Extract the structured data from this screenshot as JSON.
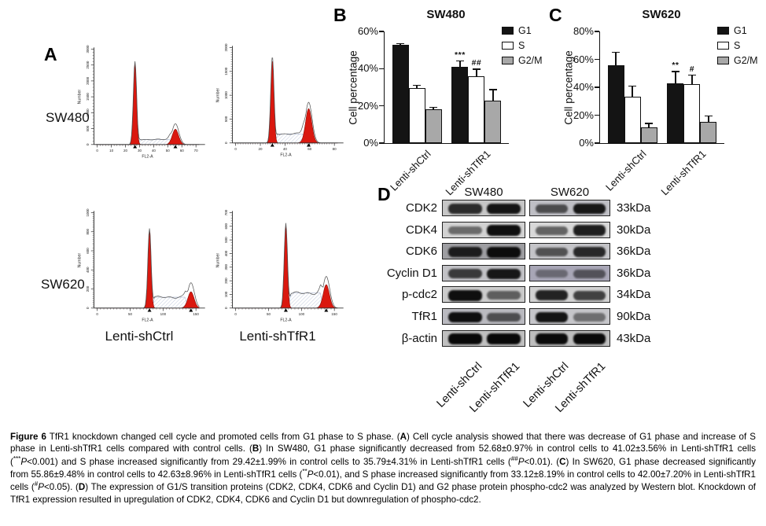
{
  "figure": {
    "background": "#ffffff"
  },
  "panel_a": {
    "label": "A",
    "row_labels": [
      "SW480",
      "SW620"
    ],
    "col_labels": [
      "Lenti-shCtrl",
      "Lenti-shTfR1"
    ],
    "axis": {
      "xlabel": "FL2-A",
      "ylabel": "Number"
    },
    "plot_colors": {
      "peak_fill": "#da180f",
      "peak_stroke": "#7c0a06",
      "hatch": "#93a2c4",
      "outline": "#555555"
    },
    "plots": [
      {
        "row": "SW480",
        "col": "Lenti-shCtrl",
        "yticks": [
          "0",
          "500",
          "1000",
          "1500",
          "2000",
          "2500",
          "3000"
        ],
        "xticks": [
          "0",
          "10",
          "20",
          "30",
          "40",
          "50",
          "60",
          "70"
        ],
        "g1_x": 0.38,
        "g1_h": 0.92,
        "g2_x": 0.77,
        "g2_h": 0.17,
        "g2_outline_h": 0.23,
        "s_h": 0.055
      },
      {
        "row": "SW480",
        "col": "Lenti-shTfR1",
        "yticks": [
          "0",
          "500",
          "1000",
          "1500",
          "2000"
        ],
        "xticks": [
          "0",
          "20",
          "40",
          "60",
          "80"
        ],
        "g1_x": 0.37,
        "g1_h": 0.96,
        "g2_x": 0.72,
        "g2_h": 0.38,
        "g2_outline_h": 0.45,
        "s_h": 0.1
      },
      {
        "row": "SW620",
        "col": "Lenti-shCtrl",
        "yticks": [
          "0",
          "200",
          "400",
          "600",
          "800",
          "1000"
        ],
        "xticks": [
          "0",
          "50",
          "100",
          "150"
        ],
        "g1_x": 0.52,
        "g1_h": 0.88,
        "g2_x": 0.92,
        "g2_h": 0.18,
        "g2_outline_h": 0.28,
        "s_h": 0.12
      },
      {
        "row": "SW620",
        "col": "Lenti-shTfR1",
        "yticks": [
          "0",
          "100",
          "200",
          "300",
          "400",
          "500",
          "600",
          "700"
        ],
        "xticks": [
          "0",
          "50",
          "100",
          "150"
        ],
        "g1_x": 0.5,
        "g1_h": 0.94,
        "g2_x": 0.89,
        "g2_h": 0.26,
        "g2_outline_h": 0.35,
        "s_h": 0.165
      }
    ]
  },
  "chart_data": [
    {
      "id": "sw480",
      "panel_label": "B",
      "type": "bar",
      "title": "SW480",
      "xlabel": "",
      "ylabel": "Cell percentage",
      "ylim": [
        0,
        60
      ],
      "yticks": [
        0,
        20,
        40,
        60
      ],
      "ytick_labels": [
        "0%",
        "20%",
        "40%",
        "60%"
      ],
      "grid": false,
      "legend_position": "top-right",
      "categories": [
        "Lenti-shCtrl",
        "Lenti-shTfR1"
      ],
      "series": [
        {
          "name": "G1",
          "color": "#141414",
          "values": [
            52.68,
            41.02
          ],
          "errors": [
            0.97,
            3.56
          ],
          "annotations": [
            "",
            "***"
          ]
        },
        {
          "name": "S",
          "color": "#ffffff",
          "values": [
            29.42,
            35.79
          ],
          "errors": [
            1.99,
            4.31
          ],
          "annotations": [
            "",
            "##"
          ]
        },
        {
          "name": "G2/M",
          "color": "#a8a8a8",
          "values": [
            18,
            23
          ],
          "errors": [
            1.5,
            6.0
          ],
          "annotations": [
            "",
            ""
          ]
        }
      ]
    },
    {
      "id": "sw620",
      "panel_label": "C",
      "type": "bar",
      "title": "SW620",
      "xlabel": "",
      "ylabel": "Cell percentage",
      "ylim": [
        0,
        80
      ],
      "yticks": [
        0,
        20,
        40,
        60,
        80
      ],
      "ytick_labels": [
        "0%",
        "20%",
        "40%",
        "60%",
        "80%"
      ],
      "grid": false,
      "legend_position": "top-right",
      "categories": [
        "Lenti-shCtrl",
        "Lenti-shTfR1"
      ],
      "series": [
        {
          "name": "G1",
          "color": "#141414",
          "values": [
            55.86,
            42.63
          ],
          "errors": [
            9.48,
            8.96
          ],
          "annotations": [
            "",
            "**"
          ]
        },
        {
          "name": "S",
          "color": "#ffffff",
          "values": [
            33.12,
            42.0
          ],
          "errors": [
            8.19,
            7.2
          ],
          "annotations": [
            "",
            "#"
          ]
        },
        {
          "name": "G2/M",
          "color": "#a8a8a8",
          "values": [
            11,
            15
          ],
          "errors": [
            3.5,
            5.0
          ],
          "annotations": [
            "",
            ""
          ]
        }
      ]
    }
  ],
  "panel_d": {
    "label": "D",
    "col_headers": [
      "SW480",
      "SW620"
    ],
    "lane_labels": [
      "Lenti-shCtrl",
      "Lenti-shTfR1",
      "Lenti-shCtrl",
      "Lenti-shTfR1"
    ],
    "rows": [
      {
        "protein": "CDK2",
        "kda": "33kDa",
        "bands": [
          0.8,
          0.92,
          0.62,
          0.9
        ],
        "bg": [
          "#c6c6c6",
          "#bfbfc5"
        ]
      },
      {
        "protein": "CDK4",
        "kda": "30kDa",
        "bands": [
          0.5,
          0.95,
          0.55,
          0.88
        ],
        "bg": [
          "#d2d2d2",
          "#d8d8d8"
        ]
      },
      {
        "protein": "CDK6",
        "kda": "36kDa",
        "bands": [
          0.85,
          0.95,
          0.6,
          0.82
        ],
        "bg": [
          "#9e9ea2",
          "#c4c4c8"
        ]
      },
      {
        "protein": "Cyclin D1",
        "kda": "36kDa",
        "bands": [
          0.72,
          0.9,
          0.38,
          0.52
        ],
        "bg": [
          "#c2c2c6",
          "#a8a6b6"
        ]
      },
      {
        "protein": "p-cdc2",
        "kda": "34kDa",
        "bands": [
          0.95,
          0.55,
          0.85,
          0.7
        ],
        "bg": [
          "#cccccc",
          "#d2d2d2"
        ]
      },
      {
        "protein": "TfR1",
        "kda": "90kDa",
        "bands": [
          0.95,
          0.6,
          0.92,
          0.45
        ],
        "bg": [
          "#babac0",
          "#c6c6ca"
        ]
      },
      {
        "protein": "β-actin",
        "kda": "43kDa",
        "bands": [
          0.98,
          0.98,
          0.97,
          0.97
        ],
        "bg": [
          "#bfbfbf",
          "#bdbdbd"
        ]
      }
    ]
  },
  "caption": {
    "segments": [
      {
        "b": true,
        "text": "Figure 6"
      },
      {
        "text": " TfR1 knockdown changed cell cycle and promoted cells from G1 phase to S phase. ("
      },
      {
        "b": true,
        "text": "A"
      },
      {
        "text": ") Cell cycle analysis showed that there was decrease of G1 phase and increase of S phase in Lenti-shTfR1 cells compared with control cells. ("
      },
      {
        "b": true,
        "text": "B"
      },
      {
        "text": ") In SW480, G1 phase significantly decreased from 52.68±0.97% in control cells to 41.02±3.56% in Lenti-shTfR1 cells ("
      },
      {
        "sup": true,
        "text": "***"
      },
      {
        "i": true,
        "text": "P"
      },
      {
        "text": "<0.001) and S phase increased significantly from 29.42±1.99% in control cells to 35.79±4.31% in Lenti-shTfR1 cells ("
      },
      {
        "sup": true,
        "text": "##"
      },
      {
        "i": true,
        "text": "P"
      },
      {
        "text": "<0.01). ("
      },
      {
        "b": true,
        "text": "C"
      },
      {
        "text": ") In SW620, G1 phase decreased significantly from 55.86±9.48% in control cells to 42.63±8.96% in Lenti-shTfR1 cells ("
      },
      {
        "sup": true,
        "text": "**"
      },
      {
        "i": true,
        "text": "P"
      },
      {
        "text": "<0.01), and S phase increased significantly from 33.12±8.19% in control cells to 42.00±7.20% in Lenti-shTfR1 cells ("
      },
      {
        "sup": true,
        "text": "#"
      },
      {
        "i": true,
        "text": "P"
      },
      {
        "text": "<0.05). ("
      },
      {
        "b": true,
        "text": "D"
      },
      {
        "text": ") The expression of G1/S transition proteins (CDK2, CDK4, CDK6 and Cyclin D1) and G2 phase protein phospho-cdc2 was analyzed by Western blot. Knockdown of TfR1 expression resulted in upregulation of CDK2, CDK4, CDK6 and Cyclin D1 but downregulation of phospho-cdc2."
      }
    ]
  }
}
